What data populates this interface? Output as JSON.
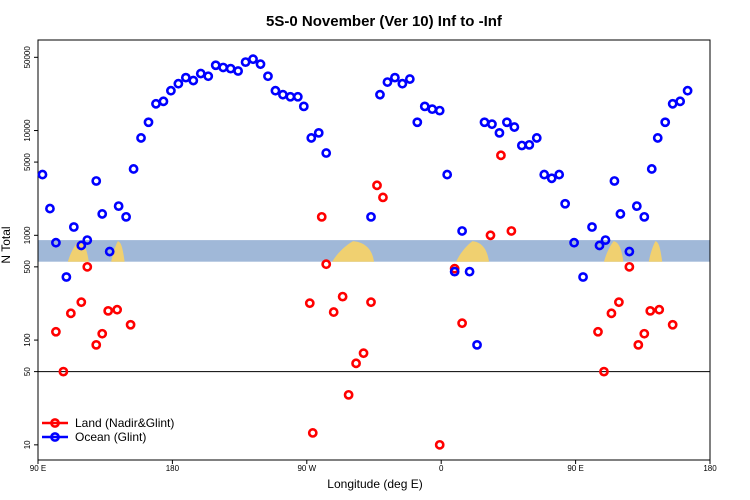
{
  "chart_data": {
    "type": "scatter",
    "title": "5S-0 November (Ver 10)   Inf to -Inf",
    "xlabel": "Longitude (deg E)",
    "ylabel": "N Total",
    "x_ticks": [
      {
        "value": 0,
        "label": "90 E"
      },
      {
        "value": 90,
        "label": "180"
      },
      {
        "value": 180,
        "label": "90 W"
      },
      {
        "value": 270,
        "label": "0"
      },
      {
        "value": 360,
        "label": "90 E"
      },
      {
        "value": 450,
        "label": "180"
      }
    ],
    "y_ticks": [
      10,
      50,
      100,
      500,
      1000,
      5000,
      10000,
      50000
    ],
    "xlim": [
      0,
      450
    ],
    "ylim": [
      8,
      70000
    ],
    "y_scale": "log",
    "reference_line": 50,
    "grid": false,
    "legend_position": "bottom-left",
    "colors": {
      "land": "#ff0000",
      "ocean": "#0000ff",
      "land_band": "#f0d070",
      "water_band": "#a0b8d8"
    },
    "series": [
      {
        "name": "Land (Nadir&Glint)",
        "color": "#ff0000",
        "points": [
          [
            12,
            120
          ],
          [
            17,
            50
          ],
          [
            22,
            180
          ],
          [
            29,
            230
          ],
          [
            33,
            500
          ],
          [
            39,
            90
          ],
          [
            43,
            115
          ],
          [
            47,
            190
          ],
          [
            53,
            195
          ],
          [
            62,
            140
          ],
          [
            182,
            225
          ],
          [
            184,
            13
          ],
          [
            190,
            1500
          ],
          [
            193,
            530
          ],
          [
            198,
            185
          ],
          [
            204,
            260
          ],
          [
            208,
            30
          ],
          [
            213,
            60
          ],
          [
            218,
            75
          ],
          [
            223,
            230
          ],
          [
            227,
            3000
          ],
          [
            231,
            2300
          ],
          [
            269,
            10
          ],
          [
            279,
            480
          ],
          [
            284,
            145
          ],
          [
            303,
            1000
          ],
          [
            310,
            5800
          ],
          [
            317,
            1100
          ],
          [
            375,
            120
          ],
          [
            379,
            50
          ],
          [
            384,
            180
          ],
          [
            389,
            230
          ],
          [
            396,
            500
          ],
          [
            402,
            90
          ],
          [
            406,
            115
          ],
          [
            410,
            190
          ],
          [
            416,
            195
          ],
          [
            425,
            140
          ]
        ]
      },
      {
        "name": "Ocean (Glint)",
        "color": "#0000ff",
        "points": [
          [
            3,
            3800
          ],
          [
            8,
            1800
          ],
          [
            12,
            850
          ],
          [
            19,
            400
          ],
          [
            24,
            1200
          ],
          [
            29,
            800
          ],
          [
            33,
            900
          ],
          [
            39,
            3300
          ],
          [
            43,
            1600
          ],
          [
            48,
            700
          ],
          [
            54,
            1900
          ],
          [
            59,
            1500
          ],
          [
            64,
            4300
          ],
          [
            69,
            8500
          ],
          [
            74,
            12000
          ],
          [
            79,
            18000
          ],
          [
            84,
            19000
          ],
          [
            89,
            24000
          ],
          [
            94,
            28000
          ],
          [
            99,
            32000
          ],
          [
            104,
            30000
          ],
          [
            109,
            35000
          ],
          [
            114,
            33000
          ],
          [
            119,
            42000
          ],
          [
            124,
            40000
          ],
          [
            129,
            39000
          ],
          [
            134,
            37000
          ],
          [
            139,
            45000
          ],
          [
            144,
            48000
          ],
          [
            149,
            43000
          ],
          [
            154,
            33000
          ],
          [
            159,
            24000
          ],
          [
            164,
            22000
          ],
          [
            169,
            21000
          ],
          [
            174,
            21000
          ],
          [
            178,
            17000
          ],
          [
            183,
            8500
          ],
          [
            188,
            9500
          ],
          [
            193,
            6100
          ],
          [
            223,
            1500
          ],
          [
            229,
            22000
          ],
          [
            234,
            29000
          ],
          [
            239,
            32000
          ],
          [
            244,
            28000
          ],
          [
            249,
            31000
          ],
          [
            254,
            12000
          ],
          [
            259,
            17000
          ],
          [
            264,
            16000
          ],
          [
            269,
            15500
          ],
          [
            274,
            3800
          ],
          [
            279,
            450
          ],
          [
            284,
            1100
          ],
          [
            289,
            450
          ],
          [
            294,
            90
          ],
          [
            299,
            12000
          ],
          [
            304,
            11500
          ],
          [
            309,
            9500
          ],
          [
            314,
            12000
          ],
          [
            319,
            10800
          ],
          [
            324,
            7200
          ],
          [
            329,
            7300
          ],
          [
            334,
            8500
          ],
          [
            339,
            3800
          ],
          [
            344,
            3500
          ],
          [
            349,
            3800
          ],
          [
            353,
            2000
          ],
          [
            359,
            850
          ],
          [
            365,
            400
          ],
          [
            371,
            1200
          ],
          [
            376,
            800
          ],
          [
            380,
            900
          ],
          [
            386,
            3300
          ],
          [
            390,
            1600
          ],
          [
            396,
            700
          ],
          [
            401,
            1900
          ],
          [
            406,
            1500
          ],
          [
            411,
            4300
          ],
          [
            415,
            8500
          ],
          [
            420,
            12000
          ],
          [
            425,
            18000
          ],
          [
            430,
            19000
          ],
          [
            435,
            24000
          ]
        ]
      }
    ],
    "land_band_segments": [
      [
        20,
        34
      ],
      [
        49,
        58
      ],
      [
        197,
        225
      ],
      [
        280,
        302
      ],
      [
        379,
        392
      ],
      [
        409,
        418
      ]
    ]
  }
}
